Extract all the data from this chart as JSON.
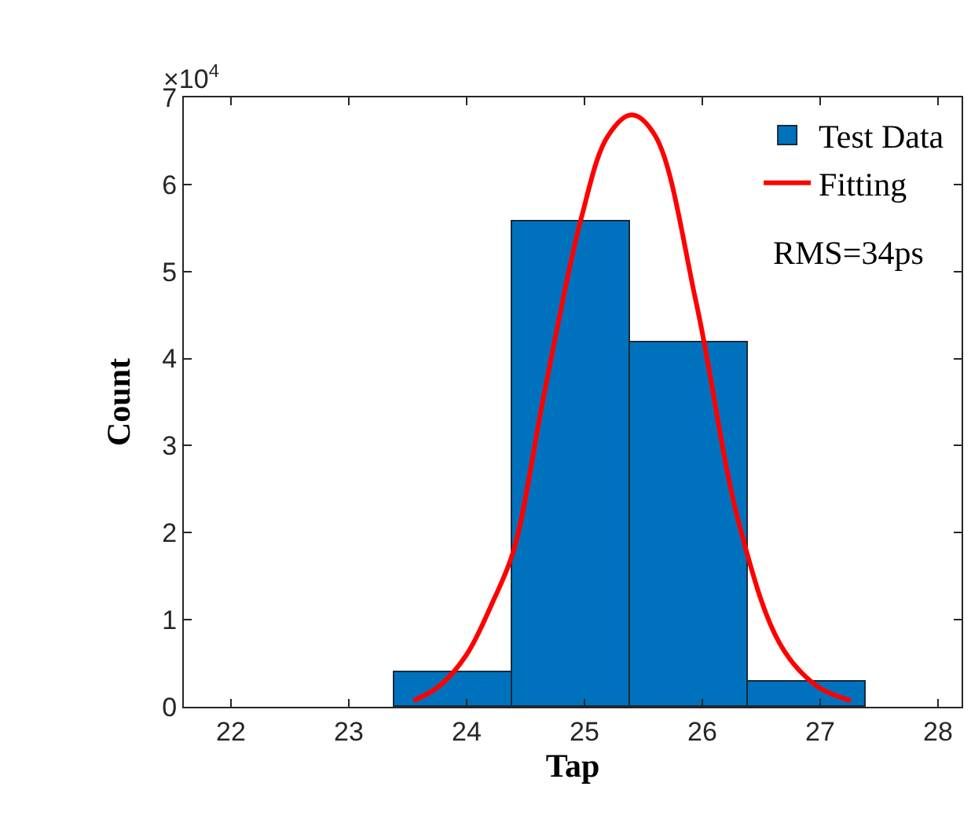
{
  "chart_data": {
    "type": "histogram",
    "xlabel": "Tap",
    "ylabel": "Count",
    "bins": [
      23.38,
      24.39,
      25.39,
      26.39,
      27.39
    ],
    "series": [
      {
        "name": "Test Data",
        "color": "#0072bd",
        "values": [
          0.39,
          5.58,
          4.18,
          0.29
        ]
      },
      {
        "name": "Fitting",
        "type": "line",
        "color": "#ff0000",
        "x": [
          23.55,
          23.77,
          24.0,
          24.22,
          24.4,
          24.66,
          24.97,
          25.2,
          25.4,
          25.6,
          25.95,
          26.31,
          26.66,
          26.97,
          27.26
        ],
        "values": [
          0.07,
          0.24,
          0.6,
          1.2,
          1.8,
          3.61,
          5.6,
          6.56,
          6.8,
          6.56,
          4.63,
          2.11,
          0.72,
          0.24,
          0.07
        ]
      }
    ],
    "xlim": [
      21.6,
      28.2
    ],
    "xticks": [
      22,
      23,
      24,
      25,
      26,
      27,
      28
    ],
    "ylim": [
      0,
      7
    ],
    "yticks": [
      0,
      1,
      2,
      3,
      4,
      5,
      6,
      7
    ],
    "annotations": [
      "×10$^{4}$",
      "RMS=34ps"
    ],
    "legend": "top right",
    "line_style": "solid"
  }
}
